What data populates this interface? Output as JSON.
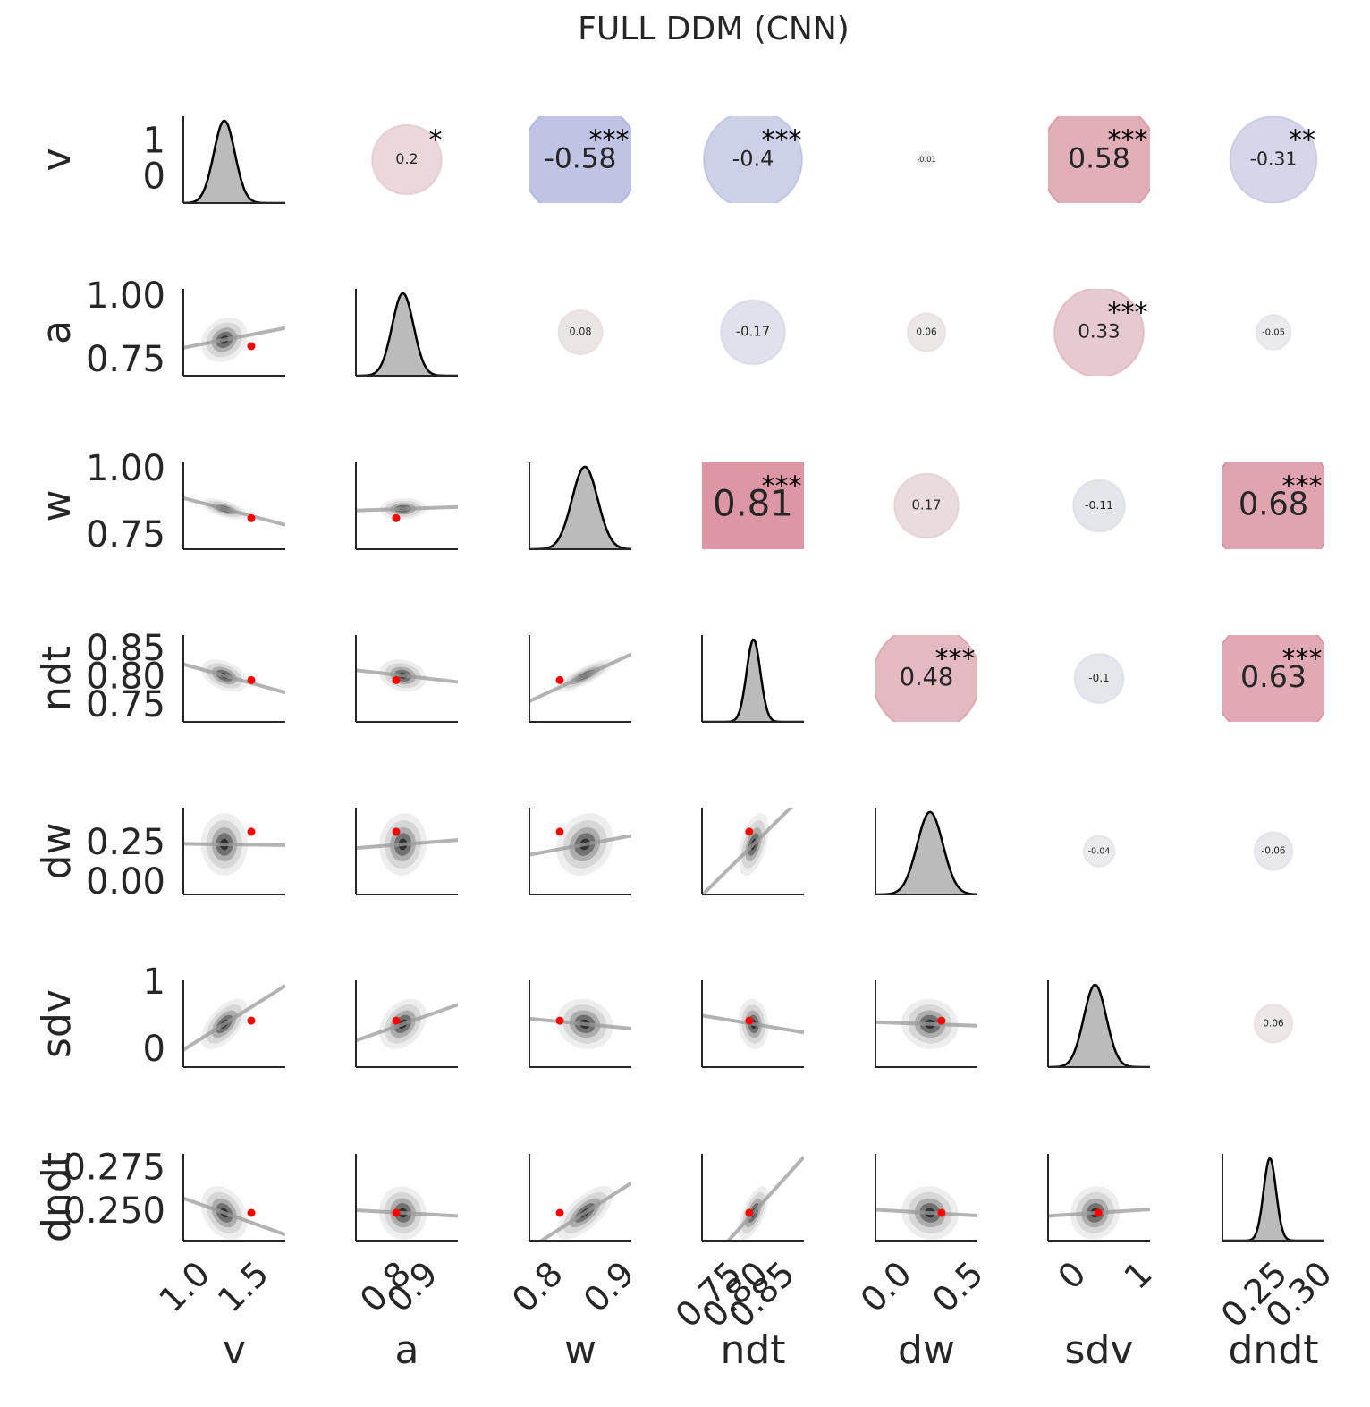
{
  "chart_data": {
    "type": "pairplot",
    "title": "FULL DDM (CNN)",
    "variables": [
      {
        "name": "v",
        "mean": 1.27,
        "sd": 0.09,
        "true_value": 1.5,
        "xlim": [
          0.92,
          1.79
        ],
        "xticks": [
          {
            "value": 1,
            "label": "1.0"
          },
          1.5
        ],
        "ylim": [
          -0.7,
          1.75
        ],
        "yticks": [
          0,
          1
        ]
      },
      {
        "name": "a",
        "mean": 0.835,
        "sd": 0.04,
        "true_value": 0.81,
        "xlim": [
          0.66,
          1.04
        ],
        "xticks": [
          0.8,
          0.9
        ],
        "ylim": [
          0.694,
          1.035
        ],
        "yticks": [
          {
            "value": 1,
            "label": "1.00"
          },
          0.75
        ]
      },
      {
        "name": "w",
        "mean": 0.855,
        "sd": 0.018,
        "true_value": 0.82,
        "xlim": [
          0.7775,
          0.92
        ],
        "xticks": [
          0.8,
          0.9
        ],
        "ylim": [
          0.703,
          1.03
        ],
        "yticks": [
          {
            "value": 1,
            "label": "1.00"
          },
          0.75
        ]
      },
      {
        "name": "ndt",
        "mean": 0.805,
        "sd": 0.013,
        "true_value": 0.797,
        "xlim": [
          0.708,
          0.9
        ],
        "xticks": [
          0.75,
          {
            "value": 0.8,
            "label": "0.80"
          },
          0.85
        ],
        "ylim": [
          0.723,
          0.877
        ],
        "yticks": [
          0.85,
          {
            "value": 0.8,
            "label": "0.80"
          },
          0.75
        ]
      },
      {
        "name": "dw",
        "mean": 0.25,
        "sd": 0.09,
        "true_value": 0.33,
        "xlim": [
          -0.13,
          0.58
        ],
        "xticks": [
          {
            "value": 0,
            "label": "0.0"
          },
          0.5
        ],
        "ylim": [
          -0.068,
          0.483
        ],
        "yticks": [
          0.25,
          {
            "value": 0,
            "label": "0.00"
          }
        ]
      },
      {
        "name": "sdv",
        "mean": 0.4,
        "sd": 0.17,
        "true_value": 0.45,
        "xlim": [
          -0.31,
          1.23
        ],
        "xticks": [
          0,
          1
        ],
        "ylim": [
          -0.24,
          1.05
        ],
        "yticks": [
          1,
          0
        ]
      },
      {
        "name": "dndt",
        "mean": 0.25,
        "sd": 0.007,
        "true_value": 0.25,
        "xlim": [
          0.197,
          0.311
        ],
        "xticks": [
          0.25,
          {
            "value": 0.3,
            "label": "0.30"
          }
        ],
        "ylim": [
          0.234,
          0.284
        ],
        "yticks": [
          0.275,
          {
            "value": 0.25,
            "label": "0.250"
          }
        ]
      }
    ],
    "correlations": [
      [
        null,
        0.2,
        -0.58,
        -0.4,
        -0.01,
        0.58,
        -0.31
      ],
      [
        null,
        null,
        0.08,
        -0.17,
        0.06,
        0.33,
        -0.05
      ],
      [
        null,
        null,
        null,
        0.81,
        0.17,
        -0.11,
        0.68
      ],
      [
        null,
        null,
        null,
        null,
        0.48,
        -0.1,
        0.63
      ],
      [
        null,
        null,
        null,
        null,
        null,
        -0.04,
        -0.06
      ],
      [
        null,
        null,
        null,
        null,
        null,
        null,
        0.06
      ],
      [
        null,
        null,
        null,
        null,
        null,
        null,
        null
      ]
    ],
    "stars": [
      [
        null,
        "*",
        "***",
        "***",
        null,
        "***",
        "**"
      ],
      [
        null,
        null,
        null,
        null,
        null,
        "***",
        null
      ],
      [
        null,
        null,
        null,
        "***",
        null,
        null,
        "***"
      ],
      [
        null,
        null,
        null,
        null,
        "***",
        null,
        "***"
      ],
      [
        null,
        null,
        null,
        null,
        null,
        null,
        null
      ],
      [
        null,
        null,
        null,
        null,
        null,
        null,
        null
      ],
      [
        null,
        null,
        null,
        null,
        null,
        null,
        null
      ]
    ],
    "true_color": "#ff0000",
    "kde_color": "#bbbbbb",
    "line_color": "#999999"
  }
}
